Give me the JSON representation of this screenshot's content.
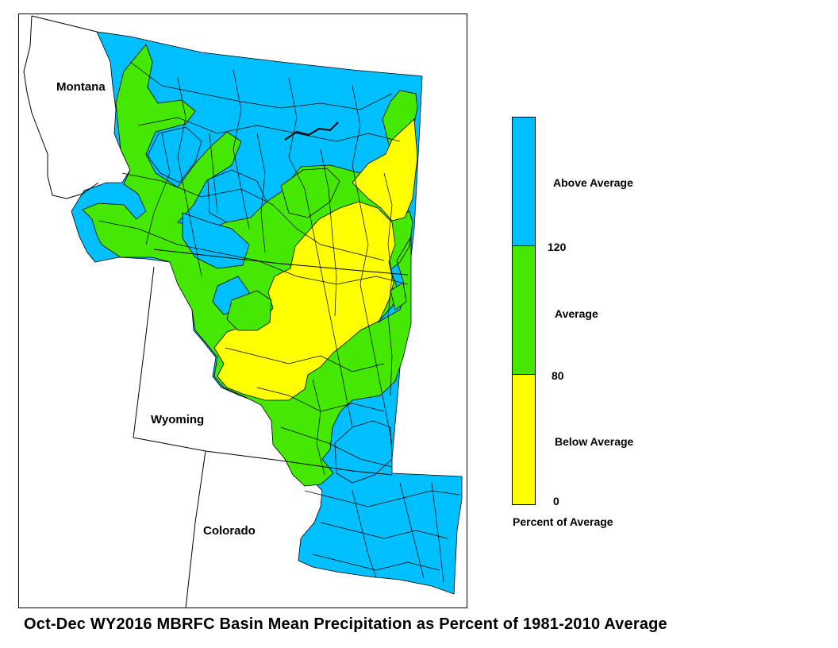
{
  "caption": "Oct-Dec WY2016 MBRFC Basin Mean Precipitation as Percent of 1981-2010 Average",
  "states": {
    "montana": "Montana",
    "wyoming": "Wyoming",
    "colorado": "Colorado"
  },
  "legend": {
    "title": "Percent of Average",
    "categories": [
      {
        "label": "Above Average",
        "color": "#00BFFF"
      },
      {
        "label": "Average",
        "color": "#44E800"
      },
      {
        "label": "Below Average",
        "color": "#FFFF00"
      }
    ],
    "breaks": {
      "b120": "120",
      "b80": "80",
      "b0": "0"
    }
  },
  "colors": {
    "above": "#00BFFF",
    "average": "#44E800",
    "below": "#FFFF00",
    "boundary": "#000000"
  }
}
